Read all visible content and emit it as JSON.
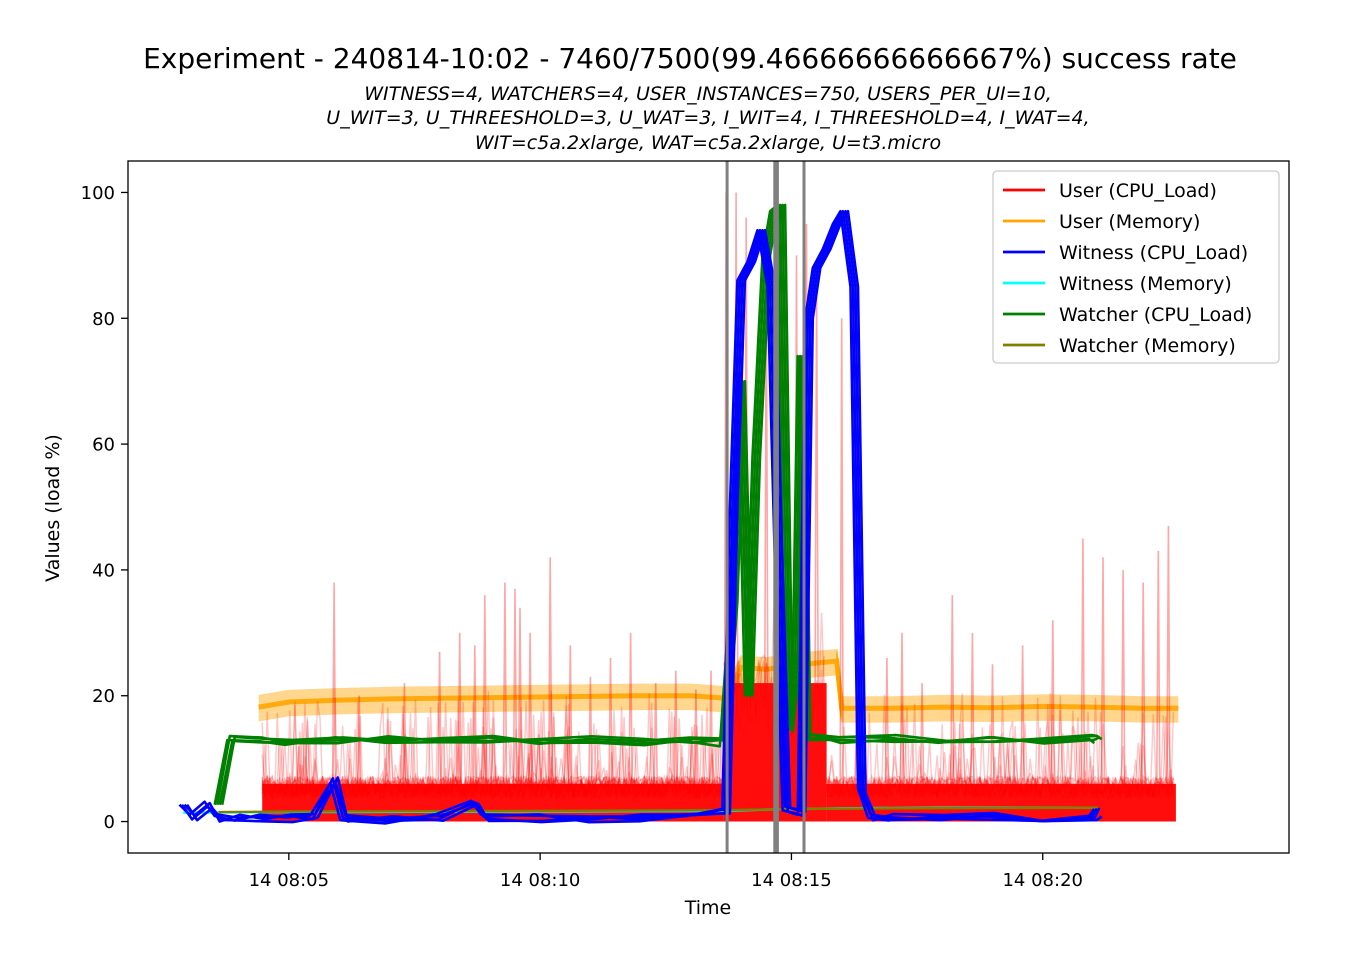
{
  "chart_data": {
    "type": "line",
    "title": "Experiment - 240814-10:02 - 7460/7500(99.46666666666667%) success rate",
    "subtitle_lines": [
      "WITNESS=4, WATCHERS=4, USER_INSTANCES=750, USERS_PER_UI=10,",
      "U_WIT=3, U_THREESHOLD=3, U_WAT=3, I_WIT=4, I_THREESHOLD=4, I_WAT=4,",
      "WIT=c5a.2xlarge, WAT=c5a.2xlarge, U=t3.micro"
    ],
    "xlabel": "Time",
    "ylabel": "Values (load %)",
    "x_unit": "minutes after 14 08:00",
    "xlim": [
      1.8,
      24.9
    ],
    "ylim": [
      -5,
      105
    ],
    "x_ticks": [
      {
        "value": 5,
        "label": "14 08:05"
      },
      {
        "value": 10,
        "label": "14 08:10"
      },
      {
        "value": 15,
        "label": "14 08:15"
      },
      {
        "value": 20,
        "label": "14 08:20"
      }
    ],
    "y_ticks": [
      0,
      20,
      40,
      60,
      80,
      100
    ],
    "vertical_markers": [
      13.72,
      14.67,
      14.72,
      15.25
    ],
    "vertical_marker_color": "#808080",
    "legend_position": "top-right",
    "series": [
      {
        "name": "User (CPU_Load)",
        "color": "#ff0000",
        "segments": [
          {
            "x_range": [
              4.47,
              13.65
            ],
            "band": [
              0,
              6
            ],
            "spikes": [
              [
                5.2,
                12
              ],
              [
                5.9,
                38
              ],
              [
                6.4,
                20
              ],
              [
                7.3,
                22
              ],
              [
                8.0,
                27
              ],
              [
                8.4,
                30
              ],
              [
                8.7,
                28
              ],
              [
                8.9,
                36
              ],
              [
                9.3,
                38
              ],
              [
                9.5,
                37
              ],
              [
                9.6,
                34
              ],
              [
                9.8,
                30
              ],
              [
                10.2,
                42
              ],
              [
                10.6,
                28
              ],
              [
                11.0,
                23
              ],
              [
                11.4,
                26
              ],
              [
                11.8,
                30
              ],
              [
                12.3,
                22
              ],
              [
                12.7,
                24
              ],
              [
                13.1,
                21
              ],
              [
                13.4,
                24
              ]
            ]
          },
          {
            "x_range": [
              13.65,
              15.7
            ],
            "band": [
              0,
              22
            ],
            "spikes": [
              [
                13.7,
                100
              ],
              [
                13.9,
                100
              ],
              [
                14.1,
                96
              ],
              [
                14.5,
                85
              ],
              [
                14.8,
                94
              ],
              [
                15.1,
                90
              ],
              [
                15.3,
                95
              ],
              [
                15.5,
                85
              ]
            ]
          },
          {
            "x_range": [
              15.7,
              22.65
            ],
            "band": [
              0,
              6
            ],
            "spikes": [
              [
                16.0,
                80
              ],
              [
                16.3,
                22
              ],
              [
                16.9,
                26
              ],
              [
                17.2,
                30
              ],
              [
                17.6,
                22
              ],
              [
                18.2,
                36
              ],
              [
                18.6,
                30
              ],
              [
                19.0,
                25
              ],
              [
                19.6,
                28
              ],
              [
                20.2,
                32
              ],
              [
                20.8,
                45
              ],
              [
                21.2,
                42
              ],
              [
                21.6,
                40
              ],
              [
                22.0,
                38
              ],
              [
                22.3,
                43
              ],
              [
                22.5,
                47
              ]
            ]
          }
        ]
      },
      {
        "name": "User (Memory)",
        "color": "#ffa500",
        "points": [
          [
            4.4,
            18.2
          ],
          [
            5.0,
            19.0
          ],
          [
            6.0,
            19.3
          ],
          [
            7.0,
            19.5
          ],
          [
            8.0,
            19.6
          ],
          [
            9.0,
            19.7
          ],
          [
            10.0,
            19.8
          ],
          [
            11.0,
            19.9
          ],
          [
            12.0,
            20.0
          ],
          [
            13.0,
            20.0
          ],
          [
            13.7,
            19.6
          ],
          [
            14.0,
            24.5
          ],
          [
            14.5,
            24.2
          ],
          [
            15.0,
            24.8
          ],
          [
            15.5,
            25.2
          ],
          [
            15.9,
            25.5
          ],
          [
            16.0,
            18.0
          ],
          [
            17.0,
            18.0
          ],
          [
            18.0,
            18.2
          ],
          [
            19.0,
            18.1
          ],
          [
            20.0,
            18.3
          ],
          [
            21.0,
            18.2
          ],
          [
            22.0,
            18.0
          ],
          [
            22.7,
            18.0
          ]
        ]
      },
      {
        "name": "Witness (CPU_Load)",
        "color": "#0000ff",
        "points": [
          [
            2.9,
            3.0
          ],
          [
            3.1,
            0.8
          ],
          [
            3.4,
            2.5
          ],
          [
            3.6,
            0.6
          ],
          [
            4.0,
            0.8
          ],
          [
            4.5,
            0.5
          ],
          [
            5.0,
            0.4
          ],
          [
            5.5,
            0.6
          ],
          [
            5.9,
            6.5
          ],
          [
            6.1,
            0.5
          ],
          [
            7.0,
            0.4
          ],
          [
            8.0,
            0.6
          ],
          [
            8.7,
            3.0
          ],
          [
            8.9,
            0.5
          ],
          [
            10.0,
            0.6
          ],
          [
            11.0,
            0.5
          ],
          [
            12.0,
            0.7
          ],
          [
            13.0,
            0.8
          ],
          [
            13.7,
            1.5
          ],
          [
            13.85,
            50
          ],
          [
            14.0,
            86
          ],
          [
            14.2,
            89
          ],
          [
            14.4,
            94
          ],
          [
            14.6,
            85
          ],
          [
            14.75,
            40
          ],
          [
            14.9,
            2
          ],
          [
            15.2,
            1.5
          ],
          [
            15.35,
            80
          ],
          [
            15.5,
            88
          ],
          [
            15.7,
            91
          ],
          [
            15.9,
            95
          ],
          [
            16.05,
            97
          ],
          [
            16.25,
            85
          ],
          [
            16.4,
            5
          ],
          [
            16.6,
            0.8
          ],
          [
            17.0,
            0.7
          ],
          [
            18.0,
            0.6
          ],
          [
            19.0,
            0.8
          ],
          [
            20.0,
            0.6
          ],
          [
            21.0,
            0.9
          ],
          [
            21.1,
            1.5
          ]
        ]
      },
      {
        "name": "Witness (Memory)",
        "color": "#00ffff",
        "points": [
          [
            2.9,
            1.4
          ],
          [
            5.0,
            1.5
          ],
          [
            10.0,
            1.6
          ],
          [
            13.7,
            1.7
          ],
          [
            14.5,
            1.9
          ],
          [
            16.0,
            2.1
          ],
          [
            18.0,
            2.2
          ],
          [
            21.1,
            2.2
          ]
        ]
      },
      {
        "name": "Watcher (CPU_Load)",
        "color": "#008000",
        "points": [
          [
            3.6,
            3.0
          ],
          [
            3.85,
            13.4
          ],
          [
            4.5,
            13.0
          ],
          [
            5.0,
            12.8
          ],
          [
            6.0,
            13.1
          ],
          [
            7.0,
            12.9
          ],
          [
            8.0,
            12.8
          ],
          [
            9.0,
            13.0
          ],
          [
            10.0,
            12.9
          ],
          [
            11.0,
            13.0
          ],
          [
            12.0,
            12.7
          ],
          [
            13.0,
            13.1
          ],
          [
            13.65,
            12.5
          ],
          [
            13.85,
            35
          ],
          [
            14.0,
            70
          ],
          [
            14.15,
            20
          ],
          [
            14.3,
            58
          ],
          [
            14.5,
            90
          ],
          [
            14.65,
            97
          ],
          [
            14.8,
            98
          ],
          [
            14.95,
            15
          ],
          [
            15.1,
            25
          ],
          [
            15.2,
            74
          ],
          [
            15.3,
            13.5
          ],
          [
            16.0,
            13.0
          ],
          [
            17.0,
            13.1
          ],
          [
            18.0,
            12.8
          ],
          [
            19.0,
            13.0
          ],
          [
            20.0,
            12.9
          ],
          [
            21.0,
            13.2
          ],
          [
            21.1,
            13.0
          ]
        ]
      },
      {
        "name": "Watcher (Memory)",
        "color": "#808000",
        "points": [
          [
            3.6,
            1.5
          ],
          [
            5.0,
            1.6
          ],
          [
            10.0,
            1.7
          ],
          [
            13.7,
            1.8
          ],
          [
            15.0,
            2.0
          ],
          [
            17.0,
            2.1
          ],
          [
            21.1,
            2.2
          ]
        ]
      }
    ]
  }
}
